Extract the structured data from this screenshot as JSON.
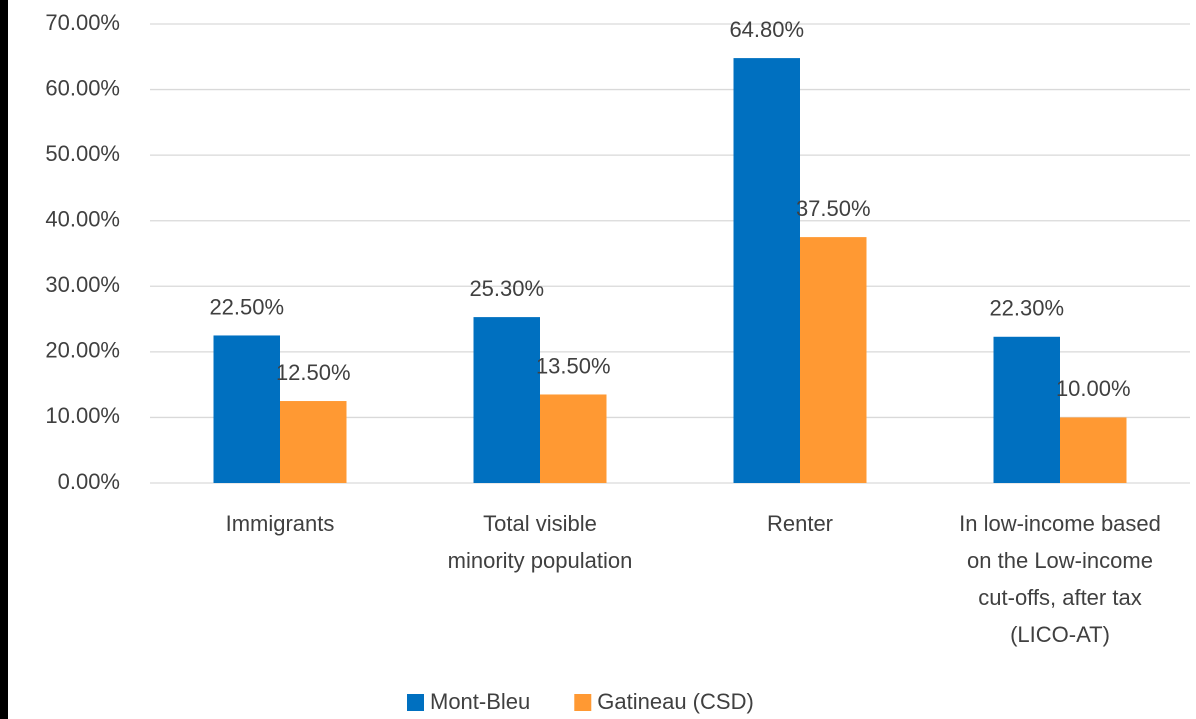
{
  "chart_data": {
    "type": "bar",
    "categories": [
      "Immigrants",
      "Total visible minority population",
      "Renter",
      "In low-income based on the Low-income cut-offs, after tax (LICO-AT)"
    ],
    "series": [
      {
        "name": "Mont-Bleu",
        "color": "#0070c0",
        "values": [
          22.5,
          25.3,
          64.8,
          22.3
        ],
        "value_labels": [
          "22.50%",
          "25.30%",
          "64.80%",
          "22.30%"
        ]
      },
      {
        "name": "Gatineau (CSD)",
        "color": "#ff9933",
        "values": [
          12.5,
          13.5,
          37.5,
          10.0
        ],
        "value_labels": [
          "12.50%",
          "13.50%",
          "37.50%",
          "10.00%"
        ]
      }
    ],
    "ylim": [
      0,
      70
    ],
    "yticks": [
      {
        "value": 0,
        "label": "0.00%"
      },
      {
        "value": 10,
        "label": "10.00%"
      },
      {
        "value": 20,
        "label": "20.00%"
      },
      {
        "value": 30,
        "label": "30.00%"
      },
      {
        "value": 40,
        "label": "40.00%"
      },
      {
        "value": 50,
        "label": "50.00%"
      },
      {
        "value": 60,
        "label": "60.00%"
      },
      {
        "value": 70,
        "label": "70.00%"
      }
    ],
    "grid": true,
    "legend": "bottom"
  }
}
